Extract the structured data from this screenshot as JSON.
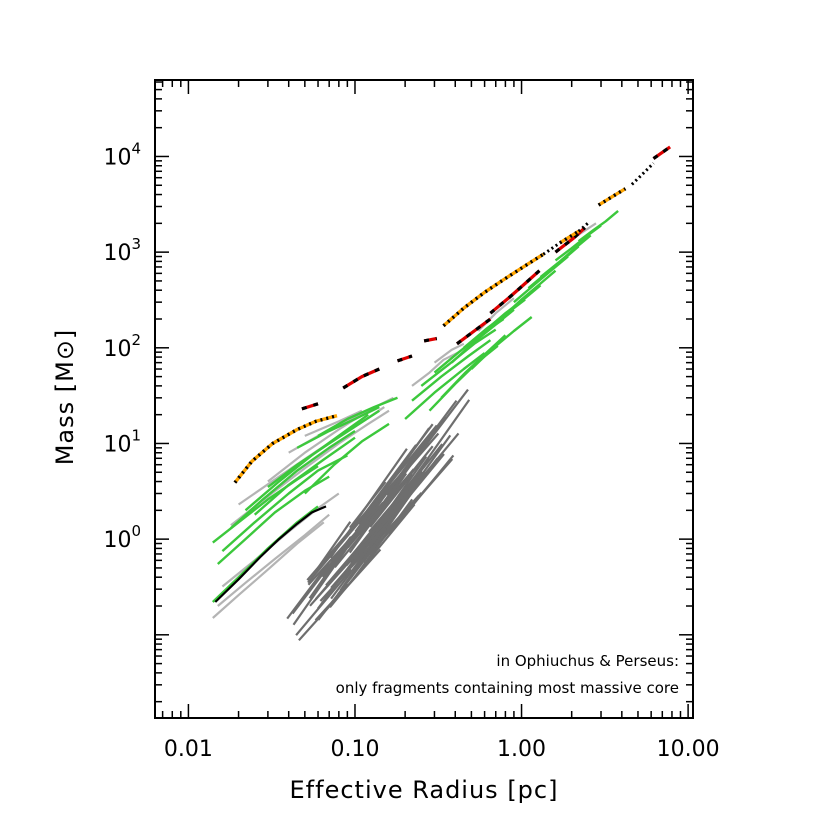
{
  "chart_data": {
    "type": "line",
    "xlabel": "Effective Radius  [pc]",
    "ylabel": "Mass  [M⊙]",
    "x_scale": "log",
    "y_scale": "log",
    "xlim": [
      0.0063,
      10.7
    ],
    "ylim": [
      0.0135,
      63000
    ],
    "grid": false,
    "x_ticks": [
      {
        "value": 0.01,
        "label": "0.01"
      },
      {
        "value": 0.1,
        "label": "0.10"
      },
      {
        "value": 1,
        "label": "1.00"
      },
      {
        "value": 10,
        "label": "10.00"
      }
    ],
    "y_ticks": [
      {
        "value": 1,
        "base": "10",
        "exp": "0"
      },
      {
        "value": 10,
        "base": "10",
        "exp": "1"
      },
      {
        "value": 100,
        "base": "10",
        "exp": "2"
      },
      {
        "value": 1000,
        "base": "10",
        "exp": "3"
      },
      {
        "value": 10000,
        "base": "10",
        "exp": "4"
      }
    ],
    "annotations": [
      "in Ophiuchus & Perseus:",
      "only fragments containing most massive core"
    ],
    "colors": {
      "orange": "#ffa500",
      "red": "#dd0000",
      "green": "#3cc83c",
      "light_gray": "#b4b4b4",
      "dark_gray": "#6e6e6e",
      "black": "#000000"
    },
    "series": [
      {
        "style": "orange-dotted",
        "segments": [
          [
            [
              0.019,
              3.9
            ],
            [
              0.024,
              6.5
            ],
            [
              0.032,
              10.0
            ],
            [
              0.045,
              14.0
            ],
            [
              0.058,
              17.0
            ],
            [
              0.078,
              19.5
            ]
          ],
          [
            [
              0.34,
              170
            ],
            [
              0.45,
              260
            ],
            [
              0.6,
              380
            ],
            [
              0.8,
              530
            ],
            [
              1.05,
              720
            ],
            [
              1.35,
              950
            ]
          ],
          [
            [
              1.7,
              1250
            ],
            [
              2.2,
              1650
            ]
          ],
          [
            [
              2.9,
              3100
            ],
            [
              3.5,
              3800
            ],
            [
              4.2,
              4600
            ]
          ]
        ]
      },
      {
        "style": "black-dotted",
        "segments": [
          [
            [
              1.35,
              950
            ],
            [
              1.7,
              1250
            ]
          ],
          [
            [
              2.2,
              1650
            ],
            [
              2.5,
              2000
            ]
          ],
          [
            [
              4.6,
              5100
            ],
            [
              5.3,
              6500
            ],
            [
              6.2,
              8500
            ]
          ]
        ]
      },
      {
        "style": "red-dashed",
        "segments": [
          [
            [
              0.048,
              23
            ],
            [
              0.06,
              26
            ]
          ],
          [
            [
              0.085,
              38
            ],
            [
              0.11,
              50
            ],
            [
              0.14,
              60
            ]
          ],
          [
            [
              0.18,
              73
            ],
            [
              0.22,
              82
            ]
          ],
          [
            [
              0.26,
              118
            ],
            [
              0.31,
              125
            ]
          ],
          [
            [
              0.41,
              110
            ],
            [
              0.52,
              150
            ],
            [
              0.65,
              200
            ]
          ],
          [
            [
              0.65,
              230
            ],
            [
              0.85,
              340
            ],
            [
              1.05,
              470
            ],
            [
              1.28,
              640
            ]
          ],
          [
            [
              1.6,
              1000
            ],
            [
              2.05,
              1400
            ],
            [
              2.4,
              1800
            ]
          ],
          [
            [
              6.2,
              9500
            ],
            [
              7.8,
              12600
            ]
          ]
        ]
      },
      {
        "style": "green",
        "segments": [
          [
            [
              0.014,
              0.92
            ],
            [
              0.02,
              1.5
            ],
            [
              0.03,
              2.6
            ],
            [
              0.045,
              4.2
            ],
            [
              0.06,
              5.8
            ]
          ],
          [
            [
              0.015,
              0.55
            ],
            [
              0.022,
              1.0
            ],
            [
              0.033,
              1.9
            ],
            [
              0.05,
              3.2
            ],
            [
              0.07,
              4.5
            ]
          ],
          [
            [
              0.014,
              0.22
            ],
            [
              0.02,
              0.4
            ],
            [
              0.03,
              0.8
            ],
            [
              0.045,
              1.5
            ],
            [
              0.06,
              2.2
            ]
          ],
          [
            [
              0.016,
              0.75
            ],
            [
              0.025,
              1.5
            ],
            [
              0.04,
              3.0
            ],
            [
              0.06,
              5.2
            ],
            [
              0.09,
              7.5
            ]
          ],
          [
            [
              0.018,
              1.3
            ],
            [
              0.028,
              2.6
            ],
            [
              0.045,
              5.2
            ],
            [
              0.07,
              9.0
            ],
            [
              0.1,
              13.5
            ]
          ],
          [
            [
              0.022,
              2.0
            ],
            [
              0.035,
              4.0
            ],
            [
              0.055,
              7.5
            ],
            [
              0.085,
              13.0
            ],
            [
              0.12,
              20.0
            ]
          ],
          [
            [
              0.025,
              1.8
            ],
            [
              0.04,
              3.7
            ],
            [
              0.065,
              6.8
            ],
            [
              0.1,
              11.5
            ]
          ],
          [
            [
              0.03,
              3.5
            ],
            [
              0.045,
              6.0
            ],
            [
              0.07,
              10.0
            ],
            [
              0.1,
              15.0
            ],
            [
              0.14,
              22.0
            ]
          ],
          [
            [
              0.045,
              9.0
            ],
            [
              0.07,
              13.5
            ],
            [
              0.1,
              18.0
            ],
            [
              0.14,
              24.0
            ]
          ],
          [
            [
              0.05,
              3.0
            ],
            [
              0.075,
              6.0
            ],
            [
              0.11,
              10.5
            ],
            [
              0.16,
              16.0
            ]
          ],
          [
            [
              0.06,
              12.0
            ],
            [
              0.09,
              18.0
            ],
            [
              0.13,
              24.0
            ],
            [
              0.18,
              30.0
            ]
          ],
          [
            [
              0.2,
              18
            ],
            [
              0.3,
              34
            ],
            [
              0.45,
              60
            ],
            [
              0.6,
              88
            ]
          ],
          [
            [
              0.22,
              28
            ],
            [
              0.33,
              50
            ],
            [
              0.48,
              82
            ],
            [
              0.65,
              120
            ]
          ],
          [
            [
              0.25,
              40
            ],
            [
              0.37,
              68
            ],
            [
              0.52,
              110
            ],
            [
              0.7,
              155
            ]
          ],
          [
            [
              0.28,
              22
            ],
            [
              0.4,
              42
            ],
            [
              0.55,
              72
            ],
            [
              0.72,
              105
            ]
          ],
          [
            [
              0.3,
              55
            ],
            [
              0.42,
              90
            ],
            [
              0.58,
              140
            ],
            [
              0.78,
              200
            ]
          ],
          [
            [
              0.33,
              30
            ],
            [
              0.46,
              55
            ],
            [
              0.62,
              90
            ],
            [
              0.8,
              135
            ]
          ],
          [
            [
              0.38,
              70
            ],
            [
              0.52,
              115
            ],
            [
              0.7,
              175
            ],
            [
              0.9,
              250
            ]
          ],
          [
            [
              0.45,
              100
            ],
            [
              0.62,
              160
            ],
            [
              0.82,
              230
            ],
            [
              1.05,
              320
            ]
          ],
          [
            [
              0.5,
              60
            ],
            [
              0.68,
              100
            ],
            [
              0.9,
              150
            ],
            [
              1.15,
              210
            ]
          ],
          [
            [
              0.6,
              150
            ],
            [
              0.8,
              230
            ],
            [
              1.05,
              330
            ],
            [
              1.3,
              450
            ]
          ],
          [
            [
              0.75,
              200
            ],
            [
              1.0,
              320
            ],
            [
              1.3,
              470
            ],
            [
              1.6,
              640
            ]
          ],
          [
            [
              0.9,
              300
            ],
            [
              1.2,
              460
            ],
            [
              1.5,
              640
            ],
            [
              1.9,
              900
            ]
          ],
          [
            [
              1.1,
              420
            ],
            [
              1.4,
              600
            ],
            [
              1.8,
              850
            ],
            [
              2.2,
              1150
            ]
          ],
          [
            [
              1.3,
              550
            ],
            [
              1.7,
              800
            ],
            [
              2.1,
              1100
            ],
            [
              2.6,
              1500
            ]
          ],
          [
            [
              1.6,
              820
            ],
            [
              2.0,
              1100
            ],
            [
              2.5,
              1500
            ],
            [
              3.0,
              1900
            ]
          ],
          [
            [
              2.2,
              1300
            ],
            [
              2.7,
              1700
            ],
            [
              3.2,
              2100
            ],
            [
              3.8,
              2700
            ]
          ]
        ]
      },
      {
        "style": "light-gray",
        "segments": [
          [
            [
              0.014,
              0.15
            ],
            [
              0.02,
              0.26
            ],
            [
              0.03,
              0.48
            ],
            [
              0.045,
              0.9
            ],
            [
              0.065,
              1.5
            ]
          ],
          [
            [
              0.015,
              0.2
            ],
            [
              0.022,
              0.35
            ],
            [
              0.033,
              0.62
            ],
            [
              0.05,
              1.1
            ],
            [
              0.07,
              1.8
            ]
          ],
          [
            [
              0.016,
              0.32
            ],
            [
              0.025,
              0.6
            ],
            [
              0.04,
              1.2
            ],
            [
              0.06,
              2.1
            ],
            [
              0.08,
              3.0
            ]
          ],
          [
            [
              0.018,
              1.4
            ],
            [
              0.03,
              2.8
            ],
            [
              0.05,
              5.5
            ],
            [
              0.08,
              10.0
            ],
            [
              0.12,
              16.0
            ],
            [
              0.16,
              22.0
            ]
          ],
          [
            [
              0.02,
              2.3
            ],
            [
              0.035,
              4.5
            ],
            [
              0.06,
              8.5
            ],
            [
              0.1,
              15.0
            ],
            [
              0.15,
              24.0
            ]
          ],
          [
            [
              0.03,
              4.0
            ],
            [
              0.05,
              8.0
            ],
            [
              0.08,
              14.0
            ],
            [
              0.12,
              22.0
            ],
            [
              0.17,
              30.0
            ]
          ],
          [
            [
              0.04,
              8.0
            ],
            [
              0.06,
              12.0
            ],
            [
              0.09,
              17.0
            ],
            [
              0.13,
              23.0
            ]
          ],
          [
            [
              0.05,
              12.0
            ],
            [
              0.08,
              17.0
            ],
            [
              0.11,
              22.0
            ]
          ],
          [
            [
              0.22,
              40
            ],
            [
              0.28,
              55
            ],
            [
              0.34,
              75
            ],
            [
              0.42,
              90
            ]
          ],
          [
            [
              0.3,
              70
            ],
            [
              0.38,
              95
            ],
            [
              0.45,
              110
            ]
          ],
          [
            [
              0.55,
              150
            ],
            [
              0.7,
              230
            ],
            [
              0.9,
              330
            ]
          ],
          [
            [
              1.8,
              1200
            ],
            [
              2.3,
              1600
            ],
            [
              2.8,
              2000
            ]
          ]
        ]
      },
      {
        "style": "black-solid",
        "segments": [
          [
            [
              0.0145,
              0.22
            ],
            [
              0.02,
              0.38
            ],
            [
              0.027,
              0.65
            ],
            [
              0.035,
              1.0
            ],
            [
              0.045,
              1.45
            ],
            [
              0.055,
              1.9
            ],
            [
              0.067,
              2.2
            ]
          ]
        ]
      }
    ]
  }
}
